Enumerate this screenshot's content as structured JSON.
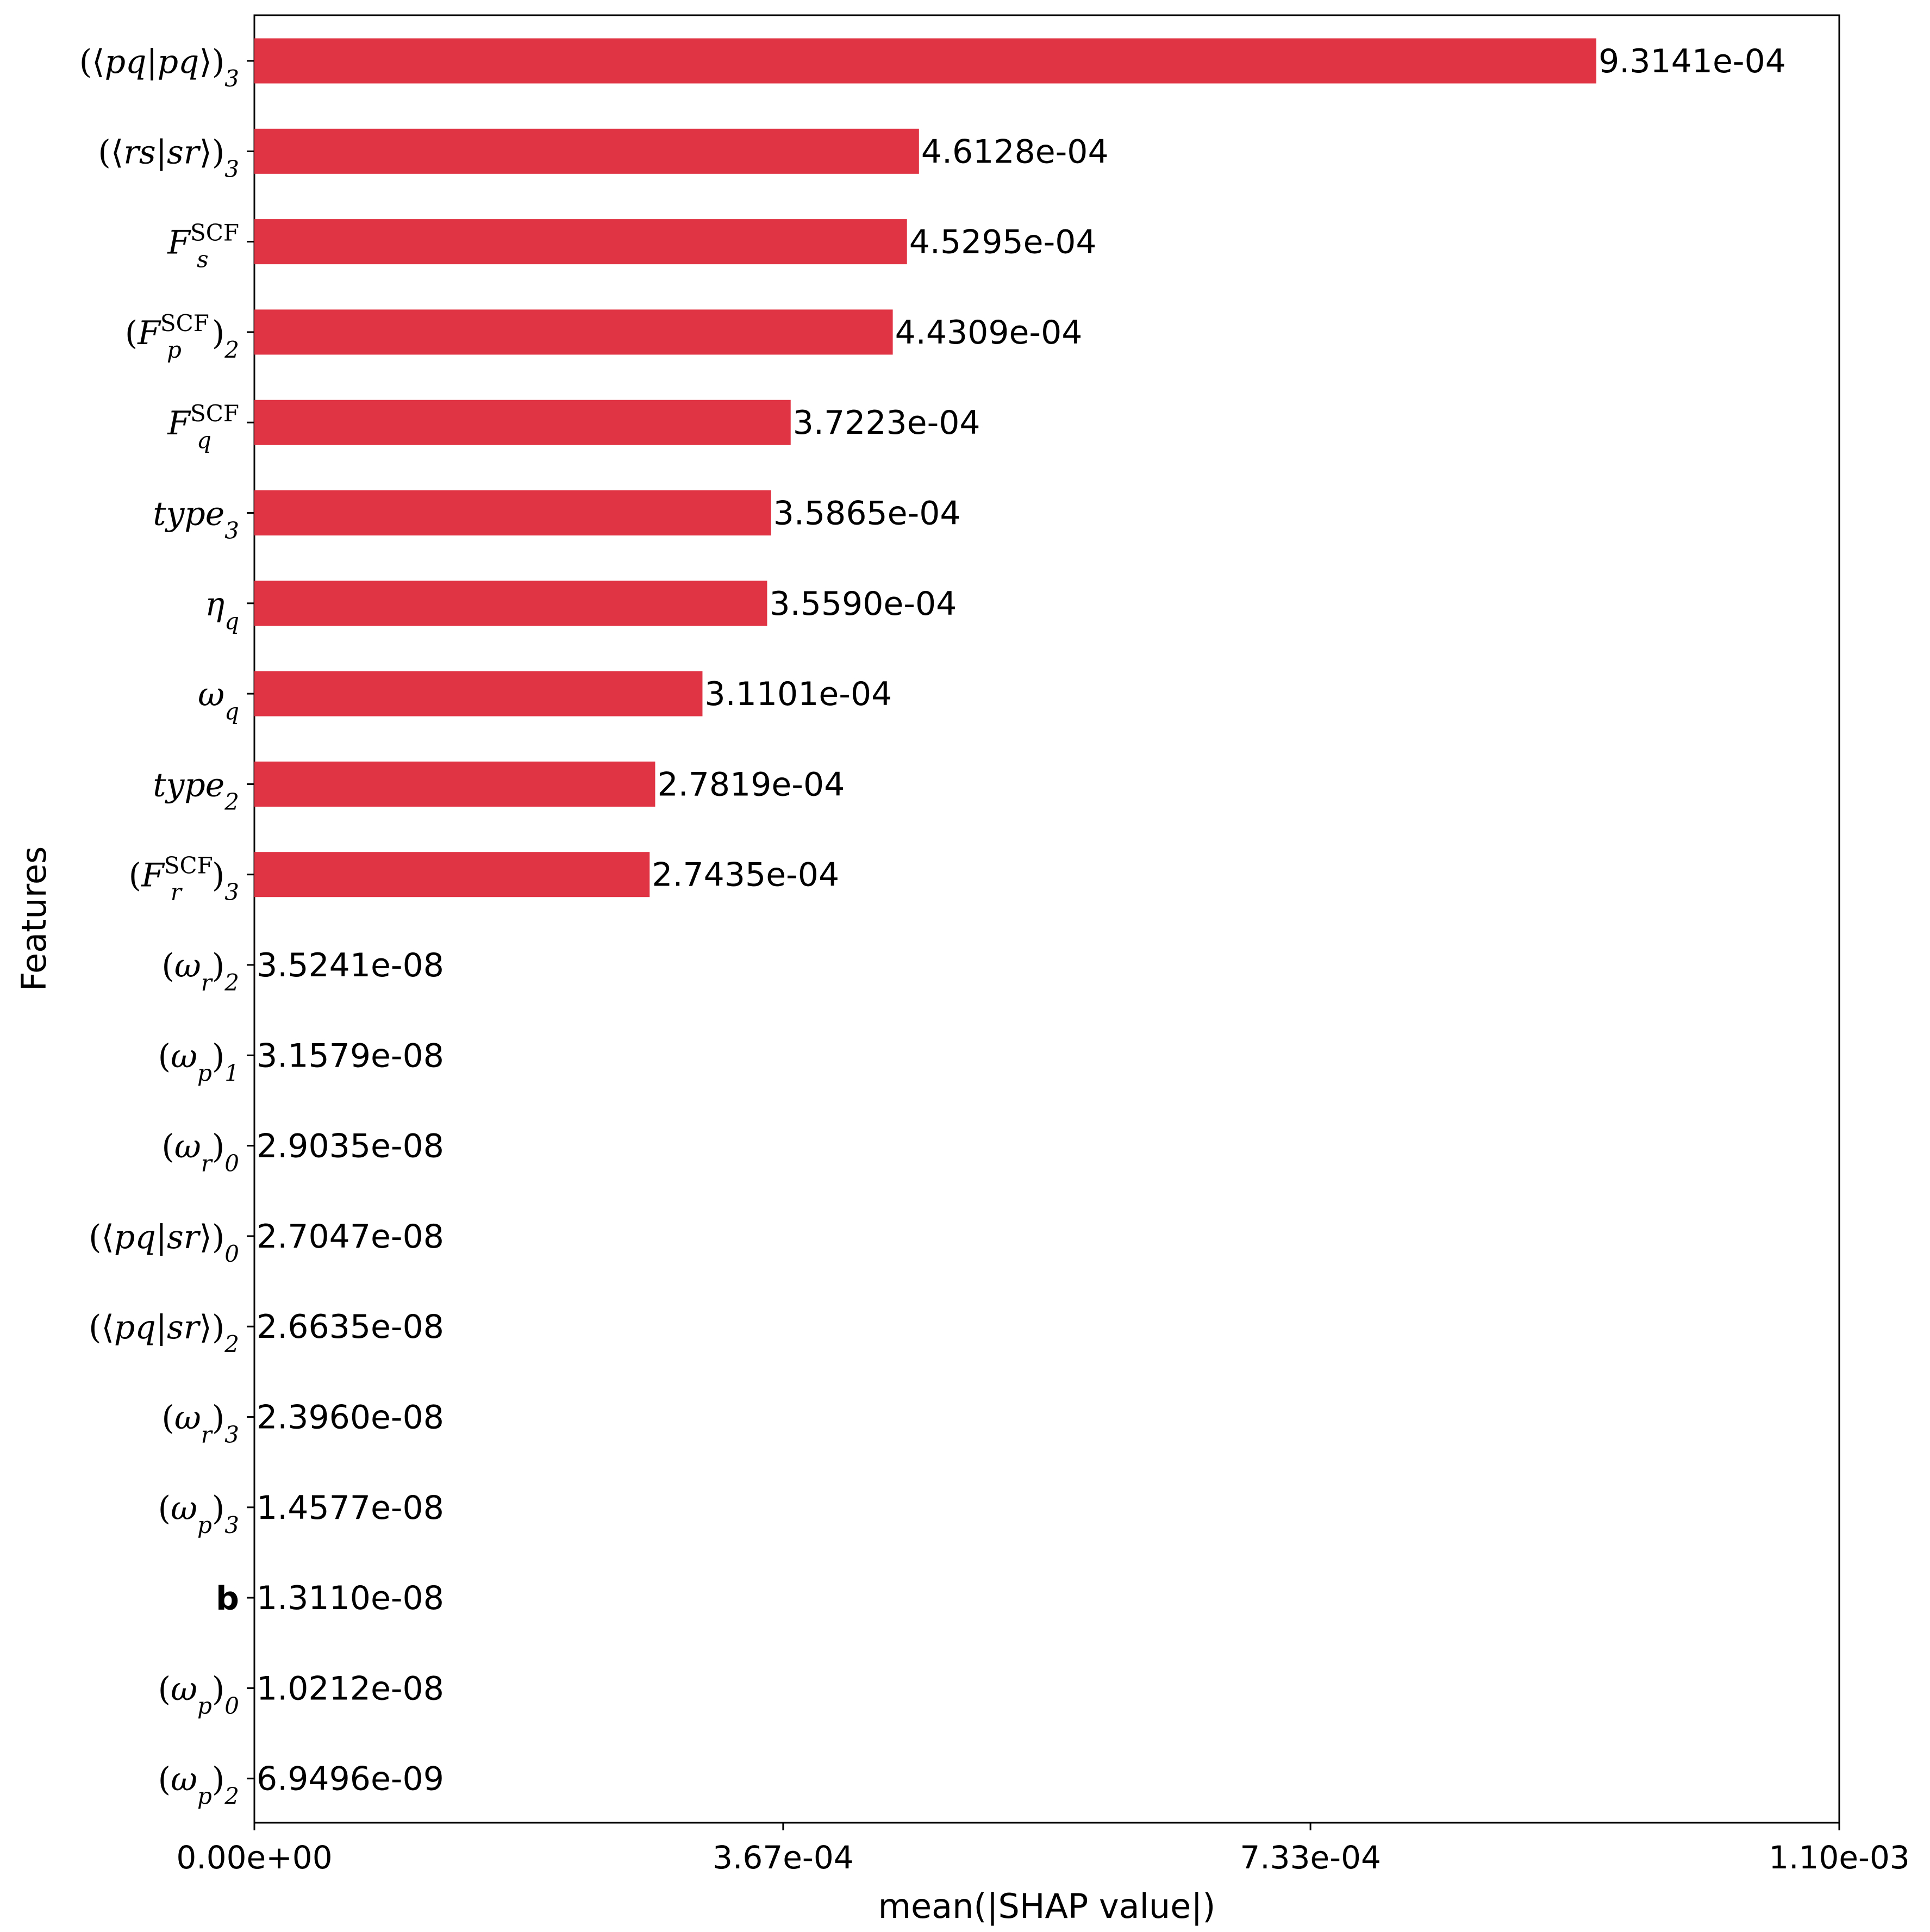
{
  "chart_data": {
    "type": "bar",
    "orientation": "horizontal",
    "xlabel": "mean(|SHAP value|)",
    "ylabel": "Features",
    "xlim": [
      0,
      0.0011
    ],
    "xticks": [
      "0.00e+00",
      "3.67e-04",
      "7.33e-04",
      "1.10e-03"
    ],
    "xtick_values": [
      0,
      0.000367,
      0.000733,
      0.0011
    ],
    "bar_color": "#e03444",
    "grid": false,
    "categories": [
      "((pq|pq))3",
      "((rs|sr))3",
      "F_s^SCF",
      "(F_p^SCF)2",
      "F_q^SCF",
      "type3",
      "ηq",
      "ωq",
      "type2",
      "(F_r^SCF)3",
      "(ωr)2",
      "(ωp)1",
      "(ωr)0",
      "((pq|sr))0",
      "((pq|sr))2",
      "(ωr)3",
      "(ωp)3",
      "b",
      "(ωp)0",
      "(ωp)2"
    ],
    "values": [
      0.00093141,
      0.00046128,
      0.00045295,
      0.00044309,
      0.00037223,
      0.00035865,
      0.0003559,
      0.00031101,
      0.00027819,
      0.00027435,
      3.5241e-08,
      3.1579e-08,
      2.9035e-08,
      2.7047e-08,
      2.6635e-08,
      2.396e-08,
      1.4577e-08,
      1.311e-08,
      1.0212e-08,
      6.9496e-09
    ],
    "value_labels": [
      "9.3141e-04",
      "4.6128e-04",
      "4.5295e-04",
      "4.4309e-04",
      "3.7223e-04",
      "3.5865e-04",
      "3.5590e-04",
      "3.1101e-04",
      "2.7819e-04",
      "2.7435e-04",
      "3.5241e-08",
      "3.1579e-08",
      "2.9035e-08",
      "2.7047e-08",
      "2.6635e-08",
      "2.3960e-08",
      "1.4577e-08",
      "1.3110e-08",
      "1.0212e-08",
      "6.9496e-09"
    ]
  }
}
